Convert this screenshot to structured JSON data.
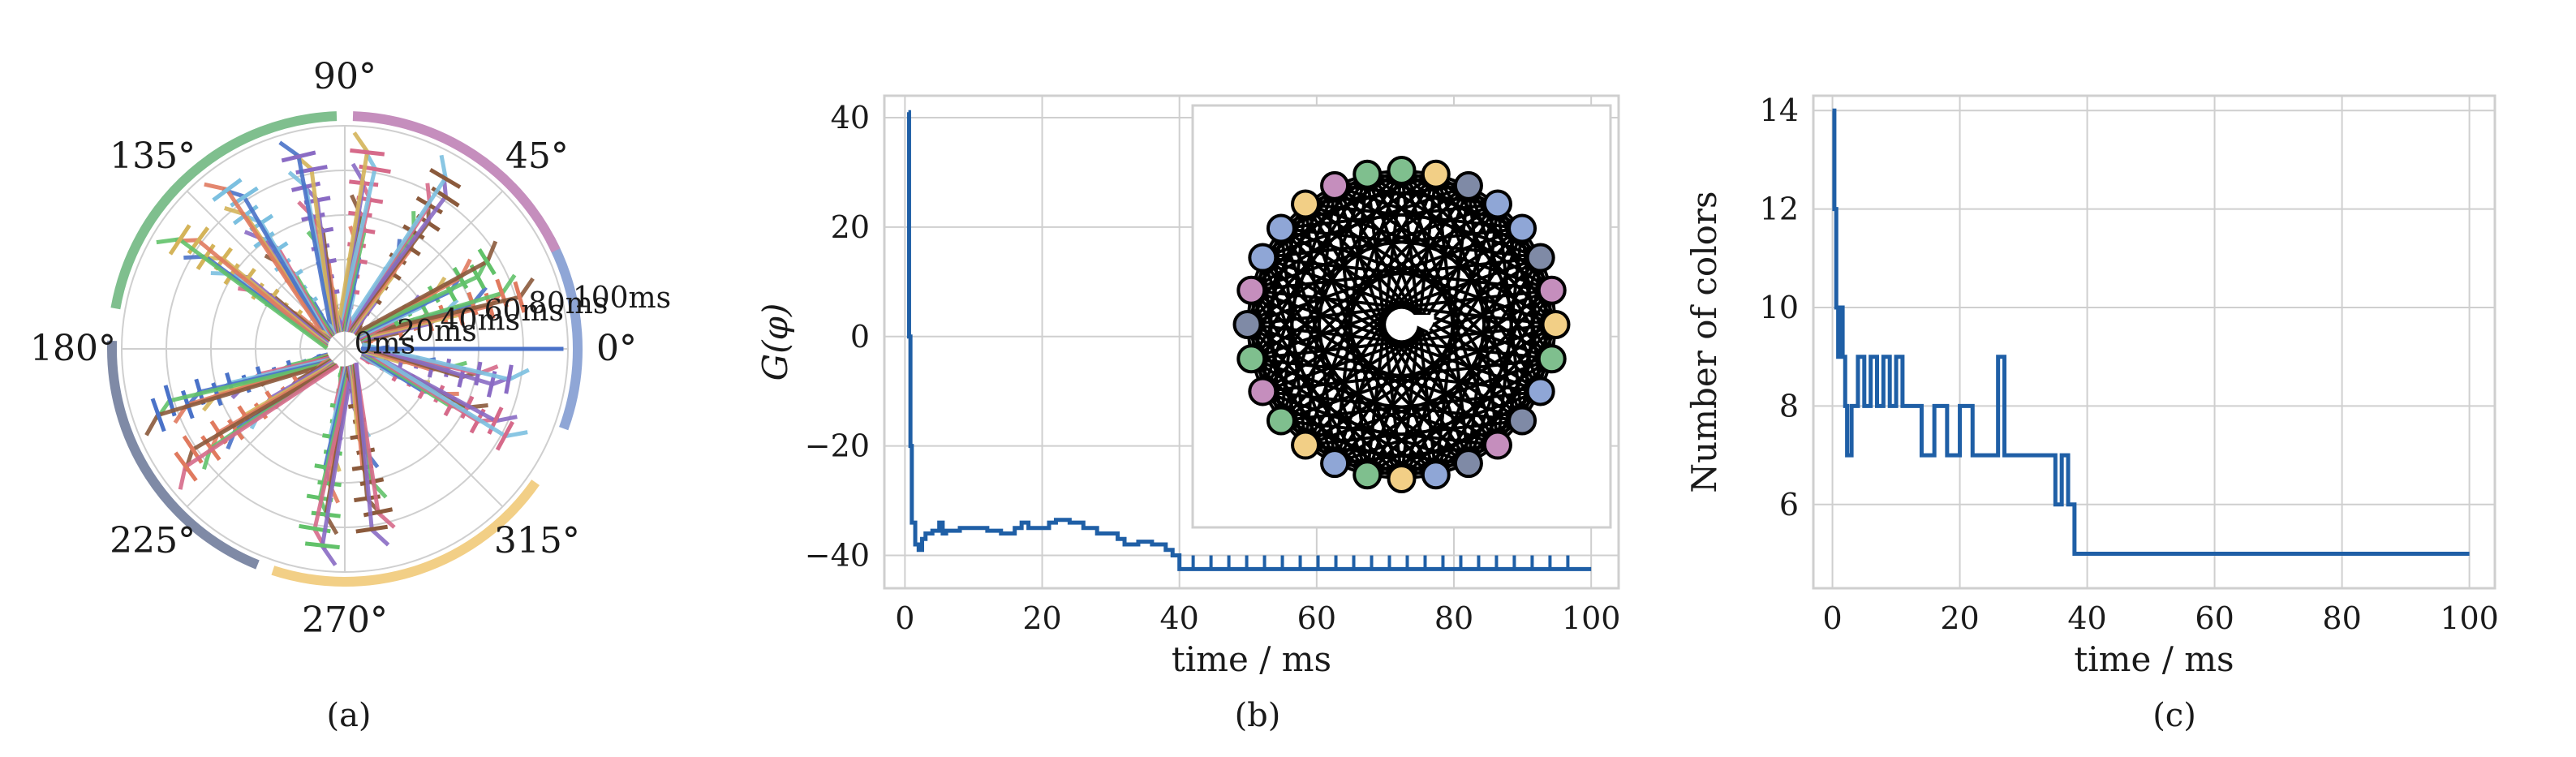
{
  "colors": {
    "line_dark_blue": "#1f5fa6",
    "grid": "#cfcfcf",
    "node_colors": [
      "#8fa6d6",
      "#f2cf86",
      "#7fbf8e",
      "#c58ebd",
      "#7f8aa6"
    ],
    "polar_series_colors": [
      "#4a72c8",
      "#e07a5f",
      "#62c26a",
      "#8b5a3c",
      "#d66a8a",
      "#8a6bc4",
      "#7cc0e0",
      "#d4b45a"
    ]
  },
  "captions": {
    "a": "(a)",
    "b": "(b)",
    "c": "(c)"
  },
  "chart_data": [
    {
      "id": "a",
      "type": "line",
      "polar": true,
      "angle_tick_labels": [
        "0°",
        "45°",
        "90°",
        "135°",
        "180°",
        "225°",
        "270°",
        "315°"
      ],
      "radial_tick_labels": [
        "0ms",
        "20ms",
        "40ms",
        "60ms",
        "80ms",
        "100ms"
      ],
      "radial_values": [
        0,
        20,
        40,
        60,
        80,
        100
      ],
      "rlim": [
        0,
        100
      ],
      "grid": true,
      "outer_color_arcs": [
        {
          "start_deg": -20,
          "end_deg": 28,
          "color": "#8fa6d6"
        },
        {
          "start_deg": 25,
          "end_deg": 88,
          "color": "#c58ebd"
        },
        {
          "start_deg": 92,
          "end_deg": 170,
          "color": "#7fbf8e"
        },
        {
          "start_deg": 178,
          "end_deg": 248,
          "color": "#7f8aa6"
        },
        {
          "start_deg": 252,
          "end_deg": 325,
          "color": "#f2cf86"
        }
      ],
      "clusters_deg": [
        {
          "angle": 0,
          "count": 1
        },
        {
          "angle": 18,
          "count": 11
        },
        {
          "angle": 30,
          "count": 10
        },
        {
          "angle": 58,
          "count": 12
        },
        {
          "angle": 82,
          "count": 12
        },
        {
          "angle": 102,
          "count": 12
        },
        {
          "angle": 125,
          "count": 12
        },
        {
          "angle": 145,
          "count": 12
        },
        {
          "angle": 198,
          "count": 12
        },
        {
          "angle": 215,
          "count": 12
        },
        {
          "angle": 262,
          "count": 12
        },
        {
          "angle": 280,
          "count": 11
        },
        {
          "angle": 333,
          "count": 11
        },
        {
          "angle": 348,
          "count": 10
        }
      ]
    },
    {
      "id": "b",
      "type": "line",
      "title": "",
      "xlabel": "time / ms",
      "ylabel": "G(φ)",
      "xlim": [
        -3,
        104
      ],
      "ylim": [
        -46,
        44
      ],
      "xticks": [
        0,
        20,
        40,
        60,
        80,
        100
      ],
      "yticks": [
        -40,
        -20,
        0,
        20,
        40
      ],
      "grid": true,
      "series": [
        {
          "x": [
            0.5,
            0.6,
            0.8,
            1.0,
            1.5,
            2,
            2.5,
            3,
            4,
            5,
            5.5,
            6,
            8,
            10,
            12,
            14,
            16,
            17,
            18,
            20,
            21,
            22,
            24,
            26,
            28,
            30,
            31,
            32,
            34,
            36,
            38,
            39,
            40,
            45,
            50,
            55,
            60,
            65,
            70,
            75,
            80,
            85,
            90,
            95,
            100
          ],
          "y": [
            41,
            0,
            -20,
            -34,
            -38,
            -39,
            -37,
            -36,
            -35.5,
            -34,
            -36,
            -35.5,
            -35,
            -35,
            -35.5,
            -36,
            -35,
            -34,
            -35,
            -35,
            -34,
            -33.5,
            -34,
            -35,
            -36,
            -36,
            -37,
            -38,
            -37.5,
            -38,
            -39,
            -40,
            -42.5,
            -42.5,
            -42.5,
            -42.5,
            -42.5,
            -42.5,
            -42.5,
            -42.5,
            -42.5,
            -42.5,
            -42.5,
            -42.5,
            -42.5
          ]
        }
      ],
      "inset": {
        "type": "graph",
        "node_count": 28,
        "node_colors": [
          "#7fbf8e",
          "#f2cf86",
          "#7f8aa6",
          "#8fa6d6",
          "#8fa6d6",
          "#7f8aa6",
          "#c58ebd",
          "#f2cf86",
          "#7fbf8e",
          "#8fa6d6",
          "#7f8aa6",
          "#c58ebd",
          "#7f8aa6",
          "#8fa6d6",
          "#f2cf86",
          "#7fbf8e",
          "#8fa6d6",
          "#f2cf86",
          "#7fbf8e",
          "#c58ebd",
          "#7fbf8e",
          "#7f8aa6",
          "#c58ebd",
          "#8fa6d6",
          "#8fa6d6",
          "#f2cf86",
          "#c58ebd",
          "#7fbf8e"
        ]
      }
    },
    {
      "id": "c",
      "type": "line",
      "title": "",
      "xlabel": "time / ms",
      "ylabel": "Number of colors",
      "xlim": [
        -3,
        104
      ],
      "ylim": [
        4.3,
        14.3
      ],
      "xticks": [
        0,
        20,
        40,
        60,
        80,
        100
      ],
      "yticks": [
        6,
        8,
        10,
        12,
        14
      ],
      "grid": true,
      "series": [
        {
          "x": [
            0,
            0.3,
            0.6,
            0.9,
            1.2,
            1.6,
            2.0,
            2.3,
            3,
            4,
            5,
            6,
            7,
            8,
            9,
            10,
            11,
            12,
            14,
            16,
            18,
            20,
            22,
            24,
            26,
            27,
            28,
            30,
            32,
            34,
            35,
            36,
            37,
            38,
            40,
            50,
            60,
            70,
            80,
            90,
            100
          ],
          "y": [
            14,
            12,
            10,
            9,
            10,
            9,
            8,
            7,
            8,
            9,
            8,
            9,
            8,
            9,
            8,
            9,
            8,
            8,
            7,
            8,
            7,
            8,
            7,
            7,
            9,
            7,
            7,
            7,
            7,
            7,
            6,
            7,
            6,
            5,
            5,
            5,
            5,
            5,
            5,
            5,
            5
          ]
        }
      ]
    }
  ]
}
